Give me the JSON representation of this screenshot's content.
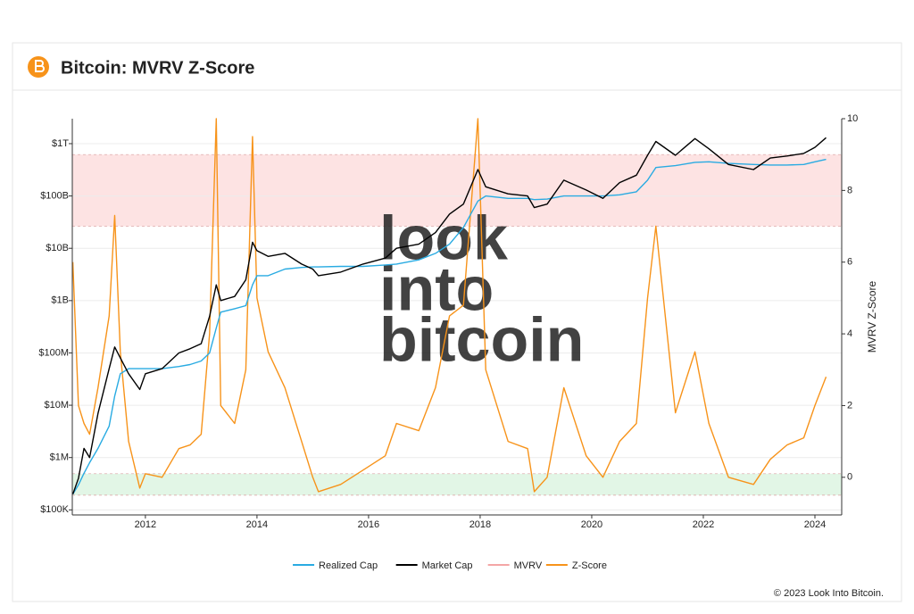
{
  "chart_data": {
    "type": "line",
    "title": "Bitcoin: MVRV Z-Score",
    "y2label": "MVRV Z-Score",
    "watermark": [
      "look",
      "into",
      "bitcoin"
    ],
    "copyright": "© 2023 Look Into Bitcoin.",
    "ylog": true,
    "grid": true,
    "legend": "bottom",
    "x": [
      2010.7,
      2010.8,
      2010.9,
      2011.0,
      2011.15,
      2011.35,
      2011.45,
      2011.55,
      2011.7,
      2011.9,
      2012.0,
      2012.3,
      2012.6,
      2012.8,
      2013.0,
      2013.15,
      2013.27,
      2013.35,
      2013.6,
      2013.8,
      2013.92,
      2014.0,
      2014.2,
      2014.5,
      2014.8,
      2015.0,
      2015.1,
      2015.5,
      2015.9,
      2016.3,
      2016.5,
      2016.9,
      2017.2,
      2017.45,
      2017.7,
      2017.96,
      2018.1,
      2018.5,
      2018.85,
      2018.97,
      2019.2,
      2019.5,
      2019.9,
      2020.2,
      2020.5,
      2020.8,
      2021.0,
      2021.15,
      2021.5,
      2021.85,
      2022.1,
      2022.45,
      2022.9,
      2023.2,
      2023.5,
      2023.8,
      2024.0,
      2024.2
    ],
    "series": [
      {
        "name": "Realized Cap",
        "color": "#29abe2",
        "values": [
          200000,
          300000,
          500000,
          800000,
          1500000,
          4000000,
          15000000,
          40000000,
          50000000,
          50000000,
          50000000,
          50000000,
          55000000,
          60000000,
          70000000,
          100000000,
          300000000,
          600000000,
          700000000,
          800000000,
          2000000000,
          3000000000,
          3000000000,
          4000000000,
          4300000000,
          4400000000,
          4400000000,
          4500000000,
          4500000000,
          4800000000,
          5000000000,
          6000000000,
          8000000000,
          12000000000,
          25000000000,
          80000000000,
          100000000000,
          90000000000,
          90000000000,
          85000000000,
          87000000000,
          100000000000,
          100000000000,
          100000000000,
          105000000000,
          120000000000,
          200000000000,
          350000000000,
          380000000000,
          440000000000,
          450000000000,
          420000000000,
          400000000000,
          390000000000,
          390000000000,
          400000000000,
          450000000000,
          500000000000
        ]
      },
      {
        "name": "Market Cap",
        "color": "#000000",
        "values": [
          200000,
          400000,
          1500000,
          1000000,
          7000000,
          50000000,
          130000000,
          80000000,
          40000000,
          20000000,
          40000000,
          50000000,
          100000000,
          120000000,
          150000000,
          500000000,
          2000000000,
          1000000000,
          1200000000,
          2500000000,
          13000000000,
          9000000000,
          7000000000,
          8000000000,
          5000000000,
          4000000000,
          3000000000,
          3500000000,
          5000000000,
          6500000000,
          10000000000,
          12000000000,
          20000000000,
          45000000000,
          70000000000,
          320000000000,
          150000000000,
          110000000000,
          100000000000,
          60000000000,
          70000000000,
          200000000000,
          130000000000,
          90000000000,
          180000000000,
          250000000000,
          600000000000,
          1100000000000,
          600000000000,
          1250000000000,
          800000000000,
          400000000000,
          320000000000,
          530000000000,
          580000000000,
          650000000000,
          850000000000,
          1300000000000
        ]
      },
      {
        "name": "MVRV",
        "color": "#f4a6a6",
        "visible": false
      },
      {
        "name": "Z-Score",
        "color": "#f7931a",
        "axis": "y2",
        "values": [
          6.0,
          2.0,
          1.5,
          1.2,
          2.5,
          4.5,
          7.3,
          3.5,
          1.0,
          -0.3,
          0.1,
          0.0,
          0.8,
          0.9,
          1.2,
          4,
          10,
          2,
          1.5,
          3,
          9.5,
          5,
          3.5,
          2.5,
          1,
          0,
          -0.4,
          -0.2,
          0.2,
          0.6,
          1.5,
          1.3,
          2.5,
          4.5,
          4.8,
          10,
          3,
          1.0,
          0.8,
          -0.4,
          0,
          2.5,
          0.6,
          0,
          1.0,
          1.5,
          5,
          7,
          1.8,
          3.5,
          1.5,
          0,
          -0.2,
          0.5,
          0.9,
          1.1,
          2,
          2.8
        ]
      }
    ],
    "bands": [
      {
        "range": [
          7,
          9
        ],
        "color": "#fde3e3"
      },
      {
        "range": [
          -0.5,
          0.1
        ],
        "color": "#e2f6e6"
      }
    ],
    "xlim": [
      2010.69,
      2024.48
    ],
    "xticks": [
      2012,
      2014,
      2016,
      2018,
      2020,
      2022,
      2024
    ],
    "ylim": [
      80000,
      3000000000000
    ],
    "yticks": [
      {
        "value": 100000,
        "label": "$100K"
      },
      {
        "value": 1000000,
        "label": "$1M"
      },
      {
        "value": 10000000,
        "label": "$10M"
      },
      {
        "value": 100000000,
        "label": "$100M"
      },
      {
        "value": 1000000000,
        "label": "$1B"
      },
      {
        "value": 10000000000,
        "label": "$10B"
      },
      {
        "value": 100000000000,
        "label": "$100B"
      },
      {
        "value": 1000000000000,
        "label": "$1T"
      }
    ],
    "y2lim": [
      -1.05,
      10
    ],
    "y2ticks": [
      0,
      2,
      4,
      6,
      8,
      10
    ]
  }
}
